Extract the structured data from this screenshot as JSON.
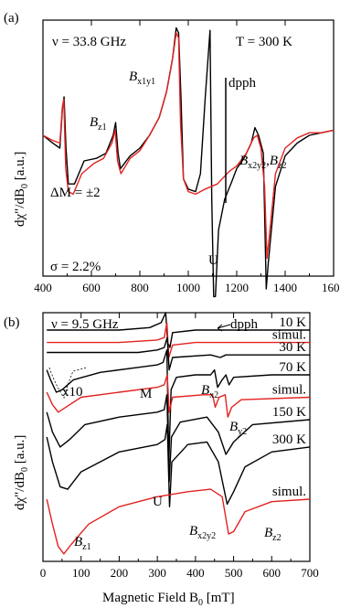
{
  "chart_data": [
    {
      "panel": "(a)",
      "type": "line",
      "x_range": [
        400,
        1600
      ],
      "x_ticks": [
        "400",
        "600",
        "800",
        "1000",
        "1200",
        "1400",
        "1600"
      ],
      "ylabel_main": "dχ\"/dB",
      "ylabel_sub": "0",
      "ylabel_unit": " [a.u.]",
      "annotations": {
        "freq": "ν = 33.8 GHz",
        "temp": "T = 300 K",
        "dm": "ΔM = ±2",
        "sigma": "σ = 2.2%",
        "dpph": "dpph",
        "u": "U",
        "bz1": "B",
        "bz1_sub": "z1",
        "bx1y1": "B",
        "bx1y1_sub": "x1y1",
        "bx2y2": "B",
        "bx2y2_sub": "x2y2",
        "sep": ",",
        "bz2": "B",
        "bz2_sub": "z2"
      },
      "series": [
        {
          "color": "#000000",
          "points": [
            [
              400,
              0.55
            ],
            [
              440,
              0.52
            ],
            [
              470,
              0.5
            ],
            [
              480,
              0.65
            ],
            [
              487,
              0.7
            ],
            [
              495,
              0.5
            ],
            [
              505,
              0.36
            ],
            [
              530,
              0.36
            ],
            [
              570,
              0.45
            ],
            [
              620,
              0.46
            ],
            [
              660,
              0.48
            ],
            [
              690,
              0.55
            ],
            [
              700,
              0.6
            ],
            [
              710,
              0.48
            ],
            [
              720,
              0.42
            ],
            [
              760,
              0.47
            ],
            [
              800,
              0.5
            ],
            [
              840,
              0.55
            ],
            [
              880,
              0.62
            ],
            [
              910,
              0.72
            ],
            [
              935,
              0.85
            ],
            [
              950,
              0.97
            ],
            [
              960,
              0.95
            ],
            [
              970,
              0.7
            ],
            [
              980,
              0.38
            ],
            [
              1000,
              0.34
            ],
            [
              1030,
              0.33
            ],
            [
              1050,
              0.4
            ],
            [
              1070,
              0.7
            ],
            [
              1090,
              0.96
            ],
            [
              1097,
              0.3
            ],
            [
              1105,
              -0.08
            ],
            [
              1112,
              -0.08
            ],
            [
              1125,
              0.18
            ],
            [
              1150,
              0.3
            ],
            [
              1180,
              0.37
            ],
            [
              1200,
              0.42
            ],
            [
              1230,
              0.46
            ],
            [
              1260,
              0.52
            ],
            [
              1275,
              0.58
            ],
            [
              1290,
              0.55
            ],
            [
              1310,
              0.48
            ],
            [
              1322,
              -0.05
            ],
            [
              1330,
              0.05
            ],
            [
              1360,
              0.35
            ],
            [
              1400,
              0.47
            ],
            [
              1450,
              0.52
            ],
            [
              1500,
              0.55
            ],
            [
              1550,
              0.56
            ],
            [
              1600,
              0.57
            ]
          ]
        },
        {
          "color": "#e32222",
          "points": [
            [
              400,
              0.55
            ],
            [
              440,
              0.53
            ],
            [
              470,
              0.52
            ],
            [
              480,
              0.66
            ],
            [
              486,
              0.69
            ],
            [
              494,
              0.42
            ],
            [
              505,
              0.33
            ],
            [
              525,
              0.32
            ],
            [
              560,
              0.4
            ],
            [
              610,
              0.44
            ],
            [
              650,
              0.46
            ],
            [
              685,
              0.52
            ],
            [
              698,
              0.57
            ],
            [
              708,
              0.45
            ],
            [
              722,
              0.4
            ],
            [
              760,
              0.46
            ],
            [
              800,
              0.49
            ],
            [
              840,
              0.55
            ],
            [
              880,
              0.62
            ],
            [
              910,
              0.72
            ],
            [
              935,
              0.85
            ],
            [
              950,
              0.95
            ],
            [
              960,
              0.93
            ],
            [
              968,
              0.6
            ],
            [
              980,
              0.38
            ],
            [
              1000,
              0.33
            ],
            [
              1030,
              0.32
            ],
            [
              1070,
              0.34
            ],
            [
              1120,
              0.36
            ],
            [
              1170,
              0.41
            ],
            [
              1200,
              0.43
            ],
            [
              1240,
              0.48
            ],
            [
              1270,
              0.54
            ],
            [
              1285,
              0.55
            ],
            [
              1300,
              0.5
            ],
            [
              1315,
              0.35
            ],
            [
              1325,
              0.07
            ],
            [
              1335,
              0.16
            ],
            [
              1360,
              0.4
            ],
            [
              1400,
              0.5
            ],
            [
              1450,
              0.54
            ],
            [
              1500,
              0.56
            ],
            [
              1550,
              0.56
            ],
            [
              1600,
              0.57
            ]
          ]
        }
      ]
    },
    {
      "panel": "(b)",
      "type": "line",
      "x_range": [
        0,
        700
      ],
      "x_ticks": [
        "0",
        "100",
        "200",
        "300",
        "400",
        "500",
        "600",
        "700"
      ],
      "xlabel_main": "Magnetic Field B",
      "xlabel_sub": "0",
      "xlabel_unit": " [mT]",
      "ylabel_main": "dχ\"/dB",
      "ylabel_sub": "0",
      "ylabel_unit": " [a.u.]",
      "annotations": {
        "freq": "ν = 9.5 GHz",
        "dpph": "dpph",
        "x10": "x10",
        "m": "M",
        "u": "U",
        "bx2": "B",
        "bx2_sub": "x2",
        "by2": "B",
        "by2_sub": "y2",
        "bz1": "B",
        "bz1_sub": "z1",
        "bx2y2": "B",
        "bx2y2_sub": "x2y2",
        "bz2": "B",
        "bz2_sub": "z2"
      },
      "series": [
        {
          "name": "10 K",
          "color": "#000000",
          "points": [
            [
              10,
              0.93
            ],
            [
              200,
              0.93
            ],
            [
              280,
              0.94
            ],
            [
              310,
              0.96
            ],
            [
              322,
              1.0
            ],
            [
              327,
              0.88
            ],
            [
              333,
              0.86
            ],
            [
              340,
              0.92
            ],
            [
              400,
              0.93
            ],
            [
              700,
              0.93
            ]
          ]
        },
        {
          "name": "simul.",
          "color": "#e32222",
          "points": [
            [
              10,
              0.88
            ],
            [
              200,
              0.88
            ],
            [
              300,
              0.89
            ],
            [
              318,
              0.9
            ],
            [
              325,
              0.96
            ],
            [
              330,
              0.82
            ],
            [
              340,
              0.87
            ],
            [
              400,
              0.88
            ],
            [
              700,
              0.88
            ]
          ]
        },
        {
          "name": "30 K",
          "color": "#000000",
          "points": [
            [
              10,
              0.84
            ],
            [
              100,
              0.84
            ],
            [
              250,
              0.84
            ],
            [
              300,
              0.85
            ],
            [
              318,
              0.86
            ],
            [
              326,
              0.9
            ],
            [
              331,
              0.77
            ],
            [
              340,
              0.82
            ],
            [
              440,
              0.83
            ],
            [
              465,
              0.82
            ],
            [
              480,
              0.83
            ],
            [
              700,
              0.83
            ]
          ]
        },
        {
          "name": "70 K",
          "color": "#000000",
          "points": [
            [
              10,
              0.77
            ],
            [
              20,
              0.73
            ],
            [
              35,
              0.68
            ],
            [
              50,
              0.69
            ],
            [
              80,
              0.73
            ],
            [
              150,
              0.76
            ],
            [
              250,
              0.78
            ],
            [
              300,
              0.79
            ],
            [
              315,
              0.8
            ],
            [
              325,
              0.85
            ],
            [
              330,
              0.4
            ],
            [
              336,
              0.69
            ],
            [
              350,
              0.74
            ],
            [
              400,
              0.75
            ],
            [
              440,
              0.75
            ],
            [
              450,
              0.77
            ],
            [
              458,
              0.7
            ],
            [
              470,
              0.73
            ],
            [
              480,
              0.75
            ],
            [
              488,
              0.71
            ],
            [
              500,
              0.74
            ],
            [
              600,
              0.75
            ],
            [
              700,
              0.75
            ]
          ]
        },
        {
          "name": "simul.",
          "color": "#e32222",
          "points": [
            [
              10,
              0.68
            ],
            [
              25,
              0.63
            ],
            [
              40,
              0.6
            ],
            [
              60,
              0.62
            ],
            [
              100,
              0.66
            ],
            [
              200,
              0.68
            ],
            [
              300,
              0.7
            ],
            [
              318,
              0.71
            ],
            [
              326,
              0.75
            ],
            [
              331,
              0.6
            ],
            [
              340,
              0.66
            ],
            [
              420,
              0.67
            ],
            [
              445,
              0.67
            ],
            [
              452,
              0.62
            ],
            [
              462,
              0.66
            ],
            [
              478,
              0.67
            ],
            [
              485,
              0.58
            ],
            [
              495,
              0.62
            ],
            [
              520,
              0.65
            ],
            [
              700,
              0.66
            ]
          ]
        },
        {
          "name": "150 K",
          "color": "#000000",
          "points": [
            [
              10,
              0.6
            ],
            [
              25,
              0.52
            ],
            [
              45,
              0.46
            ],
            [
              70,
              0.49
            ],
            [
              110,
              0.55
            ],
            [
              200,
              0.58
            ],
            [
              300,
              0.6
            ],
            [
              318,
              0.61
            ],
            [
              325,
              0.67
            ],
            [
              331,
              0.32
            ],
            [
              337,
              0.5
            ],
            [
              360,
              0.56
            ],
            [
              430,
              0.58
            ],
            [
              460,
              0.52
            ],
            [
              480,
              0.43
            ],
            [
              500,
              0.48
            ],
            [
              550,
              0.55
            ],
            [
              700,
              0.57
            ]
          ]
        },
        {
          "name": "300 K",
          "color": "#000000",
          "points": [
            [
              10,
              0.5
            ],
            [
              25,
              0.4
            ],
            [
              45,
              0.3
            ],
            [
              65,
              0.29
            ],
            [
              100,
              0.36
            ],
            [
              200,
              0.44
            ],
            [
              300,
              0.47
            ],
            [
              320,
              0.49
            ],
            [
              326,
              0.55
            ],
            [
              332,
              0.22
            ],
            [
              338,
              0.4
            ],
            [
              380,
              0.47
            ],
            [
              430,
              0.48
            ],
            [
              460,
              0.4
            ],
            [
              483,
              0.23
            ],
            [
              500,
              0.28
            ],
            [
              530,
              0.38
            ],
            [
              600,
              0.44
            ],
            [
              700,
              0.46
            ]
          ]
        },
        {
          "name": "simul.",
          "color": "#e32222",
          "points": [
            [
              10,
              0.25
            ],
            [
              25,
              0.15
            ],
            [
              40,
              0.06
            ],
            [
              55,
              0.03
            ],
            [
              75,
              0.07
            ],
            [
              120,
              0.15
            ],
            [
              200,
              0.22
            ],
            [
              300,
              0.26
            ],
            [
              380,
              0.28
            ],
            [
              440,
              0.29
            ],
            [
              470,
              0.26
            ],
            [
              487,
              0.11
            ],
            [
              500,
              0.12
            ],
            [
              530,
              0.2
            ],
            [
              600,
              0.24
            ],
            [
              700,
              0.25
            ]
          ]
        }
      ]
    }
  ]
}
